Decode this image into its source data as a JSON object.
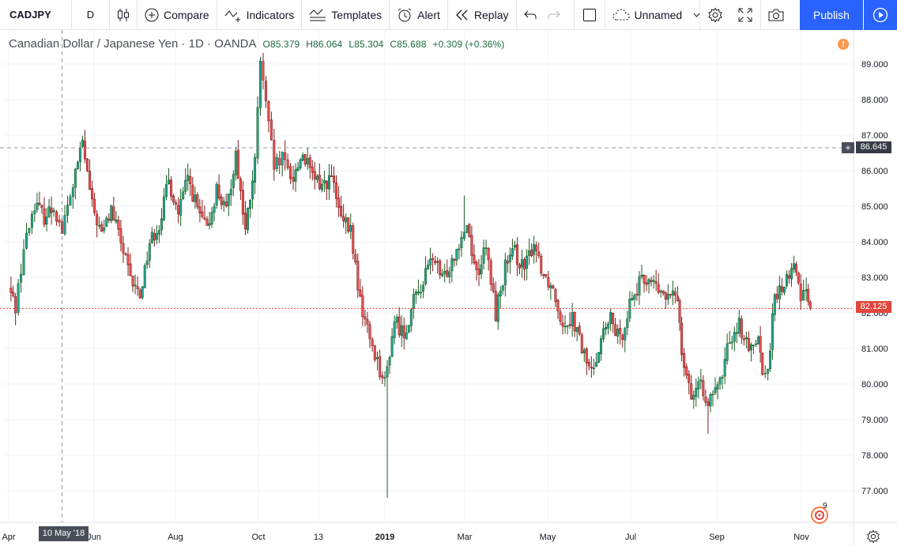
{
  "toolbar": {
    "symbol": "CADJPY",
    "interval": "D",
    "compare_label": "Compare",
    "indicators_label": "Indicators",
    "templates_label": "Templates",
    "alert_label": "Alert",
    "replay_label": "Replay",
    "layout_name": "Unnamed",
    "publish_label": "Publish"
  },
  "legend": {
    "title": "Canadian Dollar / Japanese Yen · 1D · OANDA",
    "open": "O85.379",
    "high": "H86.064",
    "low": "L85.304",
    "close": "C85.688",
    "change": "+0.309 (+0.36%)"
  },
  "badges": {
    "alert_count": "9",
    "warning": "!"
  },
  "crosshair": {
    "price_label": "86.645",
    "date_label": "10 May '18"
  },
  "last_price": "82.125",
  "colors": {
    "up": "#26a69a",
    "down": "#ef5350",
    "up_border": "#1b5e20",
    "down_border": "#7f1d1d",
    "accent": "#2962ff",
    "last_price": "#e0463d"
  },
  "chart_data": {
    "type": "candlestick",
    "title": "Canadian Dollar / Japanese Yen",
    "interval": "1D",
    "source": "OANDA",
    "y_axis": {
      "ticks": [
        "77.000",
        "78.000",
        "79.000",
        "80.000",
        "81.000",
        "82.000",
        "83.000",
        "84.000",
        "85.000",
        "86.000",
        "87.000",
        "88.000",
        "89.000"
      ],
      "ylim": [
        76.0,
        90.3
      ]
    },
    "x_axis": {
      "ticks": [
        "Apr",
        "Jun",
        "Aug",
        "Oct",
        "13",
        "2019",
        "Mar",
        "May",
        "Jul",
        "Sep",
        "Nov"
      ]
    },
    "close_path": [
      [
        "2018-04-01",
        82.7
      ],
      [
        "2018-04-06",
        82.2
      ],
      [
        "2018-04-12",
        83.8
      ],
      [
        "2018-04-20",
        85.1
      ],
      [
        "2018-04-27",
        84.7
      ],
      [
        "2018-05-04",
        85.0
      ],
      [
        "2018-05-10",
        84.3
      ],
      [
        "2018-05-18",
        85.6
      ],
      [
        "2018-05-25",
        86.8
      ],
      [
        "2018-06-01",
        85.0
      ],
      [
        "2018-06-08",
        84.2
      ],
      [
        "2018-06-15",
        84.9
      ],
      [
        "2018-06-22",
        84.0
      ],
      [
        "2018-06-29",
        82.9
      ],
      [
        "2018-07-06",
        82.5
      ],
      [
        "2018-07-13",
        84.0
      ],
      [
        "2018-07-20",
        84.5
      ],
      [
        "2018-07-27",
        85.7
      ],
      [
        "2018-08-03",
        84.8
      ],
      [
        "2018-08-10",
        85.8
      ],
      [
        "2018-08-17",
        84.9
      ],
      [
        "2018-08-24",
        84.3
      ],
      [
        "2018-08-31",
        85.5
      ],
      [
        "2018-09-07",
        84.8
      ],
      [
        "2018-09-14",
        86.5
      ],
      [
        "2018-09-21",
        84.3
      ],
      [
        "2018-09-28",
        86.2
      ],
      [
        "2018-10-02",
        89.1
      ],
      [
        "2018-10-06",
        87.8
      ],
      [
        "2018-10-12",
        86.1
      ],
      [
        "2018-10-18",
        86.3
      ],
      [
        "2018-10-26",
        85.8
      ],
      [
        "2018-11-02",
        86.5
      ],
      [
        "2018-11-09",
        85.8
      ],
      [
        "2018-11-16",
        85.6
      ],
      [
        "2018-11-23",
        85.8
      ],
      [
        "2018-11-30",
        84.6
      ],
      [
        "2018-12-07",
        84.3
      ],
      [
        "2018-12-14",
        82.3
      ],
      [
        "2018-12-21",
        81.3
      ],
      [
        "2019-01-01",
        80.0
      ],
      [
        "2019-01-08",
        81.8
      ],
      [
        "2019-01-15",
        81.4
      ],
      [
        "2019-01-22",
        82.3
      ],
      [
        "2019-01-29",
        82.9
      ],
      [
        "2019-02-05",
        83.6
      ],
      [
        "2019-02-12",
        82.9
      ],
      [
        "2019-02-19",
        83.5
      ],
      [
        "2019-02-26",
        84.2
      ],
      [
        "2019-03-02",
        84.5
      ],
      [
        "2019-03-09",
        83.1
      ],
      [
        "2019-03-16",
        83.8
      ],
      [
        "2019-03-23",
        82.0
      ],
      [
        "2019-03-30",
        83.3
      ],
      [
        "2019-04-06",
        83.7
      ],
      [
        "2019-04-13",
        83.2
      ],
      [
        "2019-04-20",
        84.0
      ],
      [
        "2019-04-27",
        83.1
      ],
      [
        "2019-05-04",
        82.7
      ],
      [
        "2019-05-11",
        81.7
      ],
      [
        "2019-05-18",
        81.9
      ],
      [
        "2019-05-25",
        81.0
      ],
      [
        "2019-06-01",
        80.3
      ],
      [
        "2019-06-08",
        81.3
      ],
      [
        "2019-06-15",
        81.8
      ],
      [
        "2019-06-22",
        81.2
      ],
      [
        "2019-06-29",
        82.3
      ],
      [
        "2019-07-06",
        82.8
      ],
      [
        "2019-07-13",
        83.0
      ],
      [
        "2019-07-20",
        82.6
      ],
      [
        "2019-07-27",
        82.4
      ],
      [
        "2019-08-03",
        82.5
      ],
      [
        "2019-08-06",
        81.0
      ],
      [
        "2019-08-13",
        79.7
      ],
      [
        "2019-08-20",
        79.9
      ],
      [
        "2019-08-27",
        79.5
      ],
      [
        "2019-09-03",
        80.0
      ],
      [
        "2019-09-10",
        81.3
      ],
      [
        "2019-09-17",
        81.7
      ],
      [
        "2019-09-24",
        80.9
      ],
      [
        "2019-10-01",
        81.5
      ],
      [
        "2019-10-04",
        80.2
      ],
      [
        "2019-10-08",
        80.5
      ],
      [
        "2019-10-13",
        82.4
      ],
      [
        "2019-10-20",
        82.8
      ],
      [
        "2019-10-27",
        83.3
      ],
      [
        "2019-11-01",
        82.5
      ],
      [
        "2019-11-05",
        82.8
      ],
      [
        "2019-11-08",
        82.125
      ]
    ],
    "notable_wicks": [
      [
        "2018-10-02",
        89.2,
        "high"
      ],
      [
        "2019-01-03",
        76.8,
        "low"
      ],
      [
        "2019-02-28",
        85.3,
        "high"
      ],
      [
        "2019-08-26",
        78.6,
        "low"
      ]
    ],
    "last_close": 82.125,
    "crosshair_price": 86.645,
    "grid": true
  }
}
